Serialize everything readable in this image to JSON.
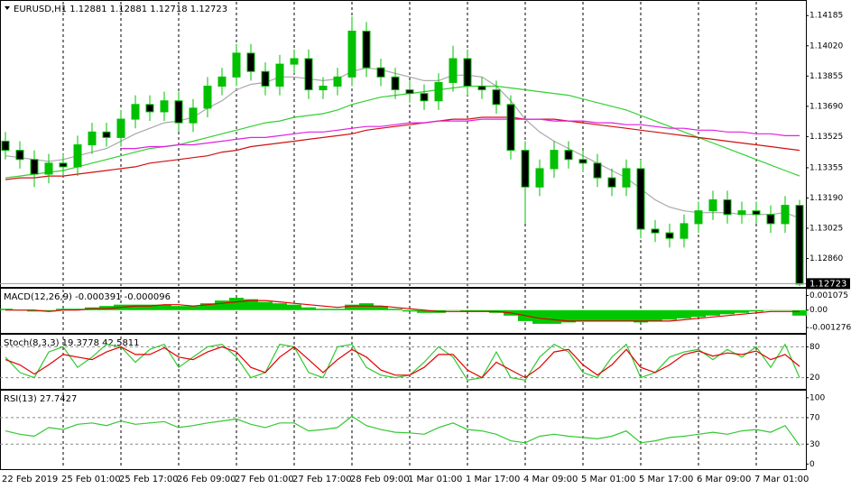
{
  "chart_data": [
    {
      "type": "candlestick",
      "title": "EURUSD,H1 1.12881 1.12881 1.12718 1.12723",
      "categories": [
        "22 Feb 2019",
        null,
        null,
        null,
        "25 Feb 01:00",
        null,
        null,
        null,
        "25 Feb 17:00",
        null,
        null,
        null,
        "26 Feb 09:00",
        null,
        null,
        null,
        "27 Feb 01:00",
        null,
        null,
        null,
        "27 Feb 17:00",
        null,
        null,
        null,
        "28 Feb 09:00",
        null,
        null,
        null,
        "1 Mar 01:00",
        null,
        null,
        null,
        "1 Mar 17:00",
        null,
        null,
        null,
        "4 Mar 09:00",
        null,
        null,
        null,
        "5 Mar 01:00",
        null,
        null,
        null,
        "5 Mar 17:00",
        null,
        null,
        null,
        "6 Mar 09:00",
        null,
        null,
        null,
        "7 Mar 01:00",
        null,
        null,
        null
      ],
      "open": [
        1.135,
        1.1345,
        1.134,
        1.1332,
        1.1338,
        1.1336,
        1.1348,
        1.1355,
        1.1352,
        1.1362,
        1.137,
        1.1366,
        1.1372,
        1.136,
        1.1368,
        1.138,
        1.1385,
        1.1398,
        1.1388,
        1.138,
        1.1392,
        1.1395,
        1.1378,
        1.138,
        1.1385,
        1.141,
        1.139,
        1.1385,
        1.1378,
        1.1376,
        1.1372,
        1.1382,
        1.1395,
        1.138,
        1.1378,
        1.137,
        1.1345,
        1.1325,
        1.1335,
        1.1345,
        1.134,
        1.1338,
        1.133,
        1.1325,
        1.1335,
        1.1302,
        1.13,
        1.1297,
        1.1305,
        1.1312,
        1.1318,
        1.131,
        1.1312,
        1.131,
        1.1305,
        1.1315
      ],
      "high": [
        1.1355,
        1.135,
        1.1345,
        1.1343,
        1.1343,
        1.1353,
        1.136,
        1.136,
        1.1367,
        1.1375,
        1.1375,
        1.1377,
        1.1377,
        1.1373,
        1.1385,
        1.139,
        1.1403,
        1.1403,
        1.1393,
        1.1397,
        1.14,
        1.14,
        1.1385,
        1.139,
        1.1418,
        1.1415,
        1.1395,
        1.139,
        1.1383,
        1.1381,
        1.1387,
        1.1402,
        1.14,
        1.1385,
        1.1383,
        1.1375,
        1.135,
        1.134,
        1.135,
        1.135,
        1.1345,
        1.1343,
        1.1335,
        1.134,
        1.134,
        1.1307,
        1.1305,
        1.131,
        1.1317,
        1.1323,
        1.1323,
        1.1317,
        1.1317,
        1.1315,
        1.132,
        1.1318
      ],
      "low": [
        1.134,
        1.1335,
        1.1325,
        1.1327,
        1.1331,
        1.1331,
        1.1343,
        1.1347,
        1.1347,
        1.1357,
        1.1361,
        1.1361,
        1.1355,
        1.1355,
        1.1363,
        1.1375,
        1.138,
        1.1383,
        1.1375,
        1.1375,
        1.1387,
        1.1373,
        1.1373,
        1.1375,
        1.138,
        1.1385,
        1.138,
        1.1373,
        1.1371,
        1.1367,
        1.1367,
        1.1377,
        1.1375,
        1.1373,
        1.1365,
        1.134,
        1.1305,
        1.132,
        1.133,
        1.1335,
        1.1333,
        1.1325,
        1.132,
        1.132,
        1.1297,
        1.1295,
        1.1292,
        1.1292,
        1.13,
        1.1307,
        1.1305,
        1.1305,
        1.1305,
        1.13,
        1.13,
        1.1271
      ],
      "close": [
        1.1345,
        1.134,
        1.1332,
        1.1338,
        1.1336,
        1.1348,
        1.1355,
        1.1352,
        1.1362,
        1.137,
        1.1366,
        1.1372,
        1.136,
        1.1368,
        1.138,
        1.1385,
        1.1398,
        1.1388,
        1.138,
        1.1392,
        1.1395,
        1.1378,
        1.138,
        1.1385,
        1.141,
        1.139,
        1.1385,
        1.1378,
        1.1376,
        1.1372,
        1.1382,
        1.1395,
        1.138,
        1.1378,
        1.137,
        1.1345,
        1.1325,
        1.1335,
        1.1345,
        1.134,
        1.1338,
        1.133,
        1.1325,
        1.1335,
        1.1302,
        1.13,
        1.1297,
        1.1305,
        1.1312,
        1.1318,
        1.131,
        1.1312,
        1.131,
        1.1305,
        1.1315,
        1.1272
      ],
      "up_color": "#00c000",
      "down_color": "#000000",
      "series": [
        {
          "color": "#a8a8a8",
          "values": [
            1.1342,
            1.1341,
            1.134,
            1.1339,
            1.134,
            1.1342,
            1.1344,
            1.1346,
            1.135,
            1.1354,
            1.1357,
            1.136,
            1.1361,
            1.1363,
            1.1368,
            1.1372,
            1.1378,
            1.1381,
            1.1382,
            1.1385,
            1.1385,
            1.1384,
            1.1383,
            1.1384,
            1.1388,
            1.139,
            1.1389,
            1.1387,
            1.1385,
            1.1383,
            1.1383,
            1.1386,
            1.1386,
            1.1385,
            1.138,
            1.1372,
            1.1362,
            1.1355,
            1.135,
            1.1346,
            1.1342,
            1.1338,
            1.1334,
            1.133,
            1.1324,
            1.1318,
            1.1314,
            1.1312,
            1.1311,
            1.1311,
            1.1311,
            1.131,
            1.131,
            1.131,
            1.1311,
            1.1308
          ]
        },
        {
          "color": "#32d032",
          "values": [
            1.133,
            1.1331,
            1.1332,
            1.1333,
            1.1334,
            1.1336,
            1.1338,
            1.134,
            1.1342,
            1.1344,
            1.1346,
            1.1347,
            1.1348,
            1.135,
            1.1352,
            1.1354,
            1.1356,
            1.1358,
            1.136,
            1.1361,
            1.1363,
            1.1364,
            1.1365,
            1.1367,
            1.137,
            1.1372,
            1.1374,
            1.1375,
            1.1376,
            1.1377,
            1.1378,
            1.1379,
            1.138,
            1.138,
            1.138,
            1.1379,
            1.1378,
            1.1377,
            1.1376,
            1.1375,
            1.1373,
            1.1371,
            1.1369,
            1.1367,
            1.1364,
            1.1361,
            1.1358,
            1.1355,
            1.1352,
            1.1349,
            1.1346,
            1.1343,
            1.134,
            1.1337,
            1.1334,
            1.1331
          ]
        },
        {
          "color": "#d01010",
          "values": [
            1.1329,
            1.133,
            1.133,
            1.1331,
            1.1331,
            1.1332,
            1.1333,
            1.1334,
            1.1335,
            1.1336,
            1.1338,
            1.1339,
            1.134,
            1.1341,
            1.1342,
            1.1344,
            1.1345,
            1.1347,
            1.1348,
            1.1349,
            1.135,
            1.1351,
            1.1352,
            1.1353,
            1.1354,
            1.1356,
            1.1357,
            1.1358,
            1.1359,
            1.136,
            1.1361,
            1.1362,
            1.1362,
            1.1363,
            1.1363,
            1.1363,
            1.1362,
            1.1362,
            1.1362,
            1.1361,
            1.136,
            1.1359,
            1.1358,
            1.1357,
            1.1356,
            1.1355,
            1.1354,
            1.1353,
            1.1352,
            1.1351,
            1.135,
            1.1349,
            1.1348,
            1.1347,
            1.1346,
            1.1345
          ]
        },
        {
          "color": "#e020e0",
          "values": [
            null,
            null,
            null,
            null,
            null,
            null,
            null,
            null,
            1.1346,
            1.1346,
            1.1347,
            1.1347,
            1.1348,
            1.1348,
            1.1349,
            1.135,
            1.1351,
            1.1352,
            1.1352,
            1.1353,
            1.1354,
            1.1355,
            1.1355,
            1.1356,
            1.1357,
            1.1358,
            1.1358,
            1.1359,
            1.136,
            1.136,
            1.1361,
            1.1361,
            1.1361,
            1.1362,
            1.1362,
            1.1362,
            1.1362,
            1.1362,
            1.1361,
            1.1361,
            1.1361,
            1.136,
            1.136,
            1.1359,
            1.1359,
            1.1358,
            1.1357,
            1.1357,
            1.1356,
            1.1356,
            1.1355,
            1.1355,
            1.1354,
            1.1354,
            1.1353,
            1.1353
          ]
        }
      ],
      "ylim": [
        1.1271,
        1.1426
      ],
      "yticks": [
        1.14185,
        {
          "value": 1.1402,
          "label": "1.14020"
        },
        1.13855,
        {
          "value": 1.1369,
          "label": "1.13690"
        },
        1.13525,
        1.13355,
        {
          "value": 1.1319,
          "label": "1.13190"
        },
        1.13025,
        {
          "value": 1.1286,
          "label": "1.12860"
        }
      ],
      "last_price": 1.12723
    },
    {
      "type": "macd",
      "title": "MACD(12,26,9) -0.000391 -0.000096",
      "series": [
        {
          "type": "bar",
          "color": "#00c800",
          "values": [
            0.0001,
            0,
            -0.0001,
            -0.0001,
            0.0001,
            0.0001,
            0.0002,
            0.0003,
            0.0004,
            0.0004,
            0.0004,
            0.0004,
            0.0003,
            0.0003,
            0.0005,
            0.0007,
            0.0009,
            0.0008,
            0.0006,
            0.0005,
            0.0004,
            0.0002,
            0.0001,
            0.0001,
            0.0004,
            0.0005,
            0.0003,
            0.0001,
            -0.0001,
            -0.0002,
            -0.0002,
            0,
            -0.0001,
            -0.0001,
            -0.0002,
            -0.0004,
            -0.0008,
            -0.001,
            -0.001,
            -0.0009,
            -0.0008,
            -0.0008,
            -0.0008,
            -0.0008,
            -0.0009,
            -0.0008,
            -0.0007,
            -0.0006,
            -0.0005,
            -0.0004,
            -0.0003,
            -0.0002,
            -0.0001,
            0,
            0,
            -0.0004
          ]
        },
        {
          "type": "line",
          "color": "#e00000",
          "values": [
            0,
            0,
            0,
            -0.0001,
            0,
            0,
            0.0001,
            0.0001,
            0.0002,
            0.0003,
            0.0003,
            0.0004,
            0.0004,
            0.0003,
            0.0004,
            0.0005,
            0.0006,
            0.0007,
            0.0007,
            0.0006,
            0.0005,
            0.0004,
            0.0003,
            0.0002,
            0.0003,
            0.0003,
            0.0003,
            0.0002,
            0.0001,
            0,
            -0.0001,
            -0.0001,
            -0.0001,
            -0.0001,
            -0.0001,
            -0.0002,
            -0.0004,
            -0.0006,
            -0.0007,
            -0.0008,
            -0.0008,
            -0.0008,
            -0.0008,
            -0.0008,
            -0.0008,
            -0.0008,
            -0.0008,
            -0.0007,
            -0.0006,
            -0.0005,
            -0.0004,
            -0.0003,
            -0.0002,
            -0.0001,
            -0.0001,
            -0.0001
          ]
        }
      ],
      "ylim": [
        -0.0016,
        0.0015
      ],
      "yticks": [
        0.001075,
        {
          "value": 0,
          "label": "0.00"
        },
        -0.001276
      ]
    },
    {
      "type": "line",
      "title": "Stoch(8,3,3) 19.3778 42.5811",
      "series": [
        {
          "color": "#32c832",
          "values": [
            60,
            30,
            20,
            70,
            80,
            40,
            60,
            85,
            80,
            50,
            75,
            85,
            40,
            60,
            80,
            85,
            60,
            20,
            30,
            85,
            80,
            30,
            20,
            80,
            85,
            40,
            25,
            20,
            25,
            50,
            80,
            60,
            15,
            20,
            70,
            20,
            15,
            60,
            85,
            70,
            30,
            20,
            60,
            85,
            20,
            30,
            60,
            70,
            75,
            55,
            75,
            60,
            80,
            40,
            85,
            20
          ]
        },
        {
          "color": "#e00000",
          "values": [
            55,
            45,
            27,
            45,
            65,
            60,
            55,
            70,
            80,
            65,
            65,
            78,
            60,
            55,
            70,
            80,
            70,
            40,
            30,
            60,
            80,
            55,
            30,
            55,
            75,
            60,
            35,
            25,
            25,
            40,
            65,
            65,
            35,
            20,
            50,
            35,
            20,
            40,
            70,
            75,
            45,
            25,
            45,
            75,
            40,
            30,
            45,
            65,
            72,
            62,
            68,
            65,
            72,
            55,
            65,
            42
          ]
        }
      ],
      "ylim": [
        0,
        100
      ],
      "yticks": [
        20,
        80
      ],
      "levels": [
        20,
        80
      ]
    },
    {
      "type": "line",
      "title": "RSI(13) 27.7427",
      "series": [
        {
          "color": "#32c832",
          "values": [
            50,
            45,
            42,
            55,
            52,
            60,
            62,
            58,
            65,
            60,
            62,
            64,
            55,
            58,
            62,
            65,
            68,
            60,
            55,
            62,
            62,
            50,
            52,
            55,
            72,
            58,
            52,
            48,
            47,
            45,
            55,
            62,
            52,
            50,
            45,
            35,
            32,
            42,
            45,
            42,
            40,
            38,
            42,
            50,
            32,
            35,
            40,
            42,
            45,
            48,
            45,
            50,
            52,
            48,
            58,
            28
          ]
        }
      ],
      "ylim": [
        -5,
        108
      ],
      "yticks": [
        0,
        30,
        70,
        100
      ],
      "levels": [
        30,
        70
      ]
    }
  ]
}
